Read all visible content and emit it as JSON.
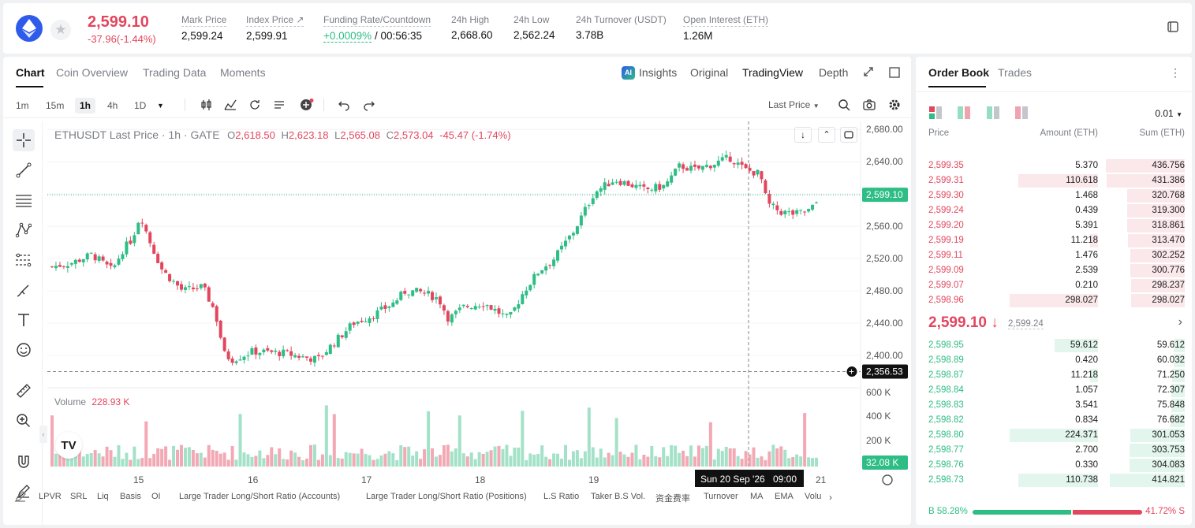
{
  "ticker": {
    "price": "2,599.10",
    "change": "-37.96(-1.44%)",
    "stats": [
      {
        "label": "Mark Price",
        "value": "2,599.24"
      },
      {
        "label": "Index Price ↗",
        "value": "2,599.91"
      },
      {
        "label": "Funding Rate/Countdown",
        "value_green": "+0.0009%",
        "value": "/ 00:56:35"
      },
      {
        "label": "24h High",
        "value": "2,668.60"
      },
      {
        "label": "24h Low",
        "value": "2,562.24"
      },
      {
        "label": "24h Turnover (USDT)",
        "value": "3.78B"
      },
      {
        "label": "Open Interest (ETH)",
        "value": "1.26M"
      }
    ]
  },
  "chart_tabs": [
    "Chart",
    "Coin Overview",
    "Trading Data",
    "Moments"
  ],
  "chart_views": [
    "Insights",
    "Original",
    "TradingView",
    "Depth"
  ],
  "timeframes": [
    "1m",
    "15m",
    "1h",
    "4h",
    "1D"
  ],
  "price_type": "Last Price",
  "legend": {
    "symbol": "ETHUSDT Last Price · 1h · GATE",
    "o_label": "O",
    "o": "2,618.50",
    "h_label": "H",
    "h": "2,623.18",
    "l_label": "L",
    "l": "2,565.08",
    "c_label": "C",
    "c": "2,573.04",
    "chg": "-45.47 (-1.74%)"
  },
  "volume": {
    "label": "Volume",
    "value": "228.93 K"
  },
  "axis": {
    "price_ticks": [
      "2,680.00",
      "2,640.00",
      "2,600.00",
      "2,560.00",
      "2,520.00",
      "2,480.00",
      "2,440.00",
      "2,400.00"
    ],
    "vol_ticks": [
      "600 K",
      "400 K",
      "200 K"
    ],
    "x_ticks": [
      "15",
      "16",
      "17",
      "18",
      "19",
      "21"
    ],
    "last_price_tag": "2,599.10",
    "crosshair_price": "2,356.53",
    "vol_tag": "32.08 K",
    "crosshair_time": "Sun 20 Sep '26",
    "crosshair_hour": "09:00"
  },
  "bottom_indicators": [
    "LPVR",
    "SRL",
    "Liq",
    "Basis",
    "OI",
    "Large Trader Long/Short Ratio (Accounts)",
    "Large Trader Long/Short Ratio (Positions)",
    "L.S Ratio",
    "Taker B.S Vol.",
    "资金费率",
    "Turnover",
    "MA",
    "EMA",
    "Volu"
  ],
  "order_book": {
    "tabs": [
      "Order Book",
      "Trades"
    ],
    "precision": "0.01",
    "headers": [
      "Price",
      "Amount (ETH)",
      "Sum (ETH)"
    ],
    "asks": [
      {
        "price": "2,599.35",
        "amount": "5.370",
        "sum": "436.756"
      },
      {
        "price": "2,599.31",
        "amount": "110.618",
        "sum": "431.386"
      },
      {
        "price": "2,599.30",
        "amount": "1.468",
        "sum": "320.768"
      },
      {
        "price": "2,599.24",
        "amount": "0.439",
        "sum": "319.300"
      },
      {
        "price": "2,599.20",
        "amount": "5.391",
        "sum": "318.861"
      },
      {
        "price": "2,599.19",
        "amount": "11.218",
        "sum": "313.470"
      },
      {
        "price": "2,599.11",
        "amount": "1.476",
        "sum": "302.252"
      },
      {
        "price": "2,599.09",
        "amount": "2.539",
        "sum": "300.776"
      },
      {
        "price": "2,599.07",
        "amount": "0.210",
        "sum": "298.237"
      },
      {
        "price": "2,598.96",
        "amount": "298.027",
        "sum": "298.027"
      }
    ],
    "mid_price": "2,599.10 ↓",
    "mid_mark": "2,599.24",
    "bids": [
      {
        "price": "2,598.95",
        "amount": "59.612",
        "sum": "59.612"
      },
      {
        "price": "2,598.89",
        "amount": "0.420",
        "sum": "60.032"
      },
      {
        "price": "2,598.87",
        "amount": "11.218",
        "sum": "71.250"
      },
      {
        "price": "2,598.84",
        "amount": "1.057",
        "sum": "72.307"
      },
      {
        "price": "2,598.83",
        "amount": "3.541",
        "sum": "75.848"
      },
      {
        "price": "2,598.82",
        "amount": "0.834",
        "sum": "76.682"
      },
      {
        "price": "2,598.80",
        "amount": "224.371",
        "sum": "301.053"
      },
      {
        "price": "2,598.77",
        "amount": "2.700",
        "sum": "303.753"
      },
      {
        "price": "2,598.76",
        "amount": "0.330",
        "sum": "304.083"
      },
      {
        "price": "2,598.73",
        "amount": "110.738",
        "sum": "414.821"
      }
    ],
    "buy_ratio": "B 58.28%",
    "sell_ratio": "41.72% S",
    "buy_pct": 58.28
  },
  "colors": {
    "up": "#2ebd85",
    "down": "#e2465d"
  }
}
